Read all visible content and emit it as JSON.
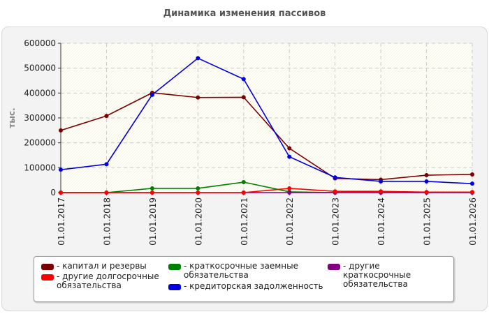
{
  "chart_data": {
    "type": "line",
    "title": "Динамика изменения пассивов",
    "ylabel": "тыс.",
    "xlabel": "",
    "ylim": [
      0,
      600000
    ],
    "yticks": [
      0,
      100000,
      200000,
      300000,
      400000,
      500000,
      600000
    ],
    "categories": [
      "01.01.2017",
      "01.01.2018",
      "01.01.2019",
      "01.01.2020",
      "01.01.2021",
      "01.01.2022",
      "01.01.2023",
      "01.01.2024",
      "01.01.2025",
      "01.01.2026"
    ],
    "grid": true,
    "legend_position": "bottom",
    "series": [
      {
        "name": "капитал и резервы",
        "color": "#7b0000",
        "values": [
          250000,
          308000,
          401000,
          382000,
          383000,
          178000,
          57000,
          52000,
          70000,
          73000
        ]
      },
      {
        "name": "краткосрочные заемные обязательства",
        "color": "#008000",
        "values": [
          0,
          0,
          17000,
          17000,
          42000,
          3000,
          0,
          0,
          0,
          0
        ]
      },
      {
        "name": "другие краткосрочные обязательства",
        "color": "#800080",
        "values": [
          0,
          0,
          0,
          0,
          0,
          0,
          0,
          0,
          0,
          0
        ]
      },
      {
        "name": "другие долгосрочные обязательства",
        "color": "#ff0000",
        "values": [
          0,
          0,
          0,
          0,
          0,
          17000,
          5000,
          5000,
          2000,
          2000
        ]
      },
      {
        "name": "кредиторская задолженность",
        "color": "#0000e0",
        "values": [
          92000,
          114000,
          393000,
          540000,
          456000,
          144000,
          61000,
          45000,
          45000,
          36000
        ]
      }
    ]
  }
}
